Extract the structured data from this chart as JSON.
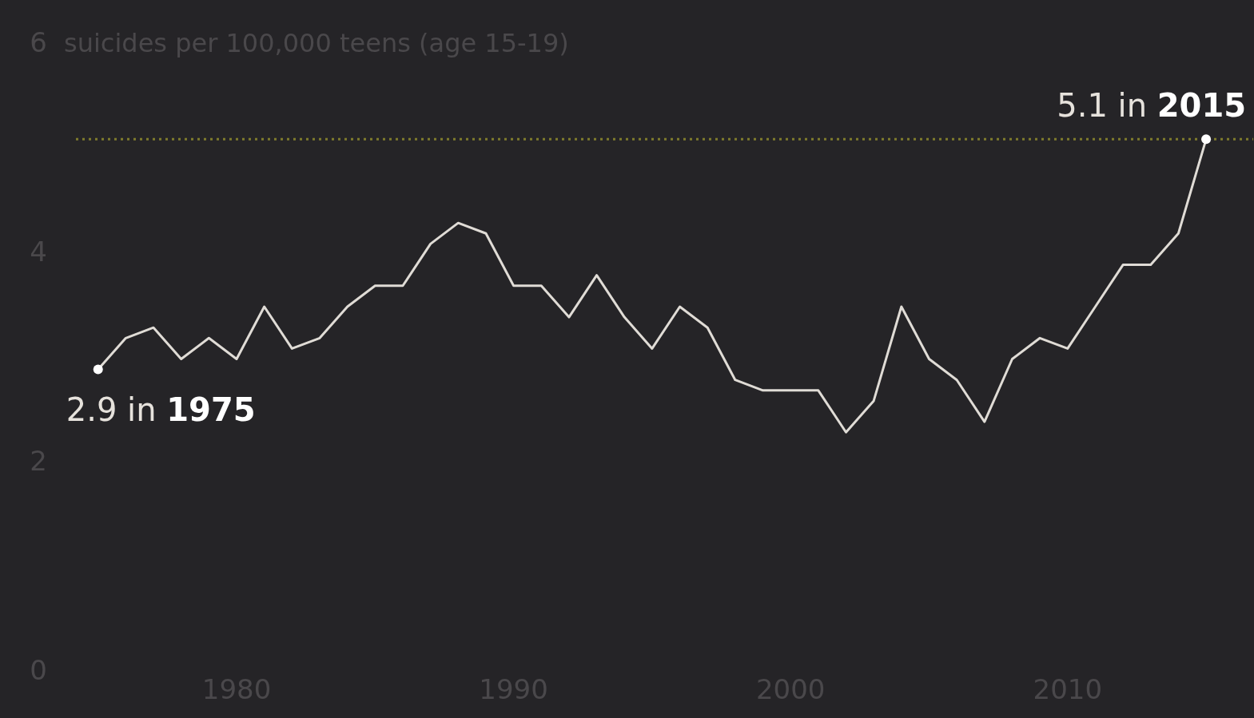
{
  "chart_data": {
    "type": "line",
    "ylabel": "suicides per 100,000 teens (age 15-19)",
    "x": [
      1975,
      1976,
      1977,
      1978,
      1979,
      1980,
      1981,
      1982,
      1983,
      1984,
      1985,
      1986,
      1987,
      1988,
      1989,
      1990,
      1991,
      1992,
      1993,
      1994,
      1995,
      1996,
      1997,
      1998,
      1999,
      2000,
      2001,
      2002,
      2003,
      2004,
      2005,
      2006,
      2007,
      2008,
      2009,
      2010,
      2011,
      2012,
      2013,
      2014,
      2015
    ],
    "series": [
      {
        "color": "#e0dcd6",
        "values": [
          2.9,
          3.2,
          3.3,
          3.0,
          3.2,
          3.0,
          3.5,
          3.1,
          3.2,
          3.5,
          3.7,
          3.7,
          4.1,
          4.3,
          4.2,
          3.7,
          3.7,
          3.4,
          3.8,
          3.4,
          3.1,
          3.5,
          3.3,
          2.8,
          2.7,
          2.7,
          2.7,
          2.3,
          2.6,
          3.5,
          3.0,
          2.8,
          2.4,
          3.0,
          3.2,
          3.1,
          3.5,
          3.9,
          3.9,
          4.2,
          5.1
        ]
      }
    ],
    "xlim": [
      1974.2,
      2016.7
    ],
    "xticks": [
      1980,
      1990,
      2000,
      2010
    ],
    "ylim": [
      0,
      6
    ],
    "yticks": [
      0,
      2,
      4,
      6
    ],
    "grid": false,
    "legend": false,
    "marker": "none",
    "line_style": "solid",
    "ref_lines": [
      {
        "axis": "y",
        "value": 5.1,
        "color": "#7f7b2c",
        "line_style": "dotted"
      }
    ],
    "annotations": [
      {
        "text": "2.9 in 1975",
        "x": 1975,
        "y": 2.9
      },
      {
        "text": "5.1 in 2015",
        "x": 2015,
        "y": 5.1
      }
    ]
  }
}
